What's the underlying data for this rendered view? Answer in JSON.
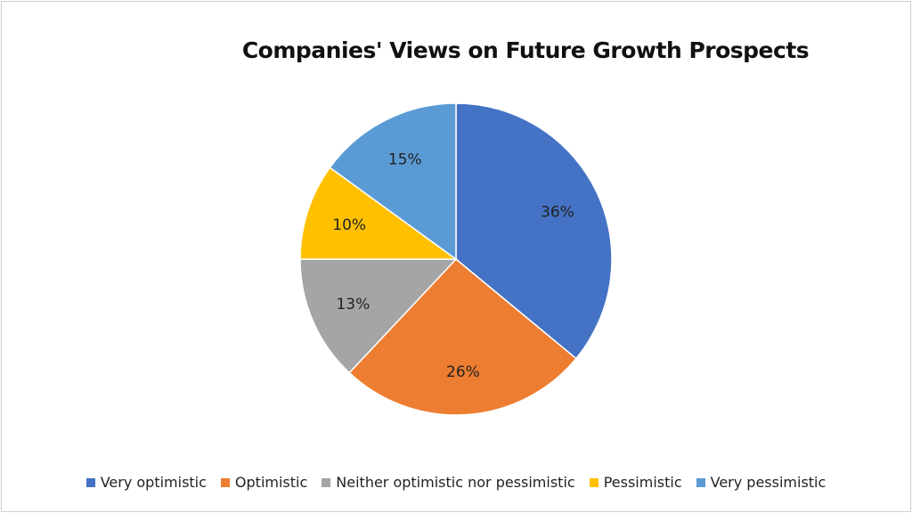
{
  "chart_data": {
    "type": "pie",
    "title": "Companies' Views on Future Growth Prospects",
    "categories": [
      "Very optimistic",
      "Optimistic",
      "Neither optimistic nor pessimistic",
      "Pessimistic",
      "Very pessimistic"
    ],
    "values": [
      36,
      26,
      13,
      10,
      15
    ],
    "labels": [
      "36%",
      "26%",
      "13%",
      "10%",
      "15%"
    ],
    "colors": [
      "#4472C4",
      "#ED7D31",
      "#A5A5A5",
      "#FFC000",
      "#5B9BD5"
    ],
    "start": "top",
    "direction": "clockwise",
    "legend_position": "bottom"
  }
}
